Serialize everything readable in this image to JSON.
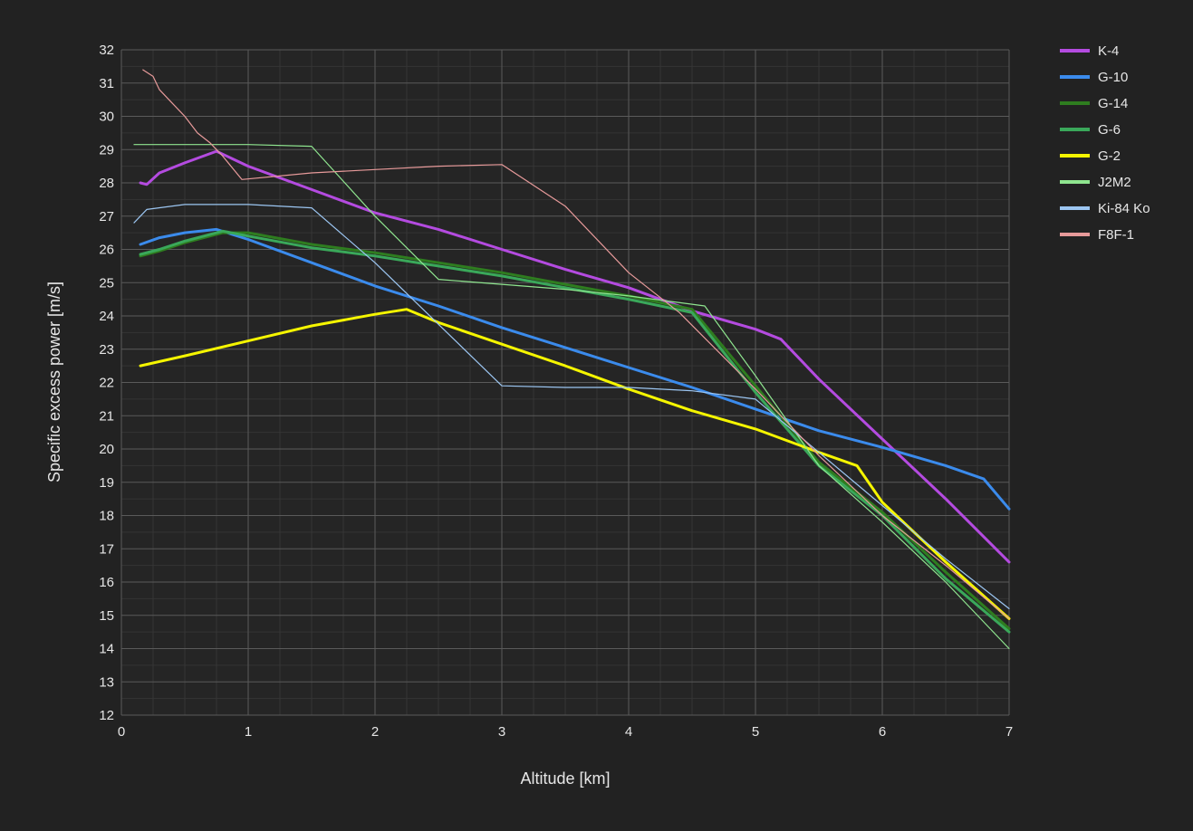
{
  "chart_data": {
    "type": "line",
    "title": "",
    "xlabel": "Altitude [km]",
    "ylabel": "Specific excess power [m/s]",
    "xlim": [
      0,
      7
    ],
    "ylim": [
      12,
      32
    ],
    "xticks": [
      0,
      1,
      2,
      3,
      4,
      5,
      6,
      7
    ],
    "yticks": [
      12,
      13,
      14,
      15,
      16,
      17,
      18,
      19,
      20,
      21,
      22,
      23,
      24,
      25,
      26,
      27,
      28,
      29,
      30,
      31,
      32
    ],
    "grid": true,
    "legend_position": "right",
    "colors": {
      "background": "#222222",
      "plot_background": "#252525",
      "grid_major": "#5a5a5a",
      "grid_minor": "#353535",
      "text": "#e6e6e6"
    },
    "series": [
      {
        "name": "K-4",
        "color": "#b44be0",
        "width": 3,
        "x": [
          0.15,
          0.2,
          0.3,
          0.5,
          0.75,
          1.0,
          1.5,
          2.0,
          2.5,
          3.0,
          3.5,
          4.0,
          4.5,
          5.0,
          5.2,
          5.5,
          6.0,
          6.5,
          7.0
        ],
        "y": [
          28.0,
          27.95,
          28.3,
          28.6,
          28.95,
          28.5,
          27.8,
          27.1,
          26.6,
          26.0,
          25.4,
          24.85,
          24.15,
          23.6,
          23.3,
          22.1,
          20.3,
          18.5,
          16.6
        ]
      },
      {
        "name": "G-10",
        "color": "#3b8bec",
        "width": 3,
        "x": [
          0.15,
          0.3,
          0.5,
          0.75,
          1.0,
          1.5,
          2.0,
          2.5,
          3.0,
          3.5,
          4.0,
          4.5,
          5.0,
          5.5,
          6.0,
          6.5,
          6.8,
          7.0
        ],
        "y": [
          26.15,
          26.35,
          26.5,
          26.6,
          26.3,
          25.6,
          24.9,
          24.3,
          23.65,
          23.05,
          22.45,
          21.85,
          21.2,
          20.55,
          20.05,
          19.5,
          19.1,
          18.2
        ]
      },
      {
        "name": "G-14",
        "color": "#2e7d1f",
        "width": 3,
        "x": [
          0.15,
          0.3,
          0.5,
          0.8,
          1.0,
          1.5,
          2.0,
          2.5,
          3.0,
          3.5,
          4.0,
          4.5,
          5.0,
          5.5,
          6.0,
          6.5,
          7.0
        ],
        "y": [
          25.8,
          25.95,
          26.2,
          26.5,
          26.5,
          26.15,
          25.9,
          25.6,
          25.3,
          24.95,
          24.6,
          24.2,
          21.9,
          19.6,
          18.1,
          16.3,
          14.6
        ]
      },
      {
        "name": "G-6",
        "color": "#3aa85a",
        "width": 3,
        "x": [
          0.15,
          0.3,
          0.5,
          0.8,
          1.0,
          1.5,
          2.0,
          2.5,
          3.0,
          3.5,
          4.0,
          4.5,
          5.0,
          5.5,
          6.0,
          6.5,
          7.0
        ],
        "y": [
          25.85,
          26.0,
          26.25,
          26.55,
          26.4,
          26.05,
          25.8,
          25.5,
          25.2,
          24.85,
          24.5,
          24.1,
          21.7,
          19.5,
          18.0,
          16.1,
          14.5
        ]
      },
      {
        "name": "G-2",
        "color": "#f5f500",
        "width": 3,
        "x": [
          0.15,
          0.5,
          1.0,
          1.5,
          2.0,
          2.25,
          2.5,
          3.0,
          3.5,
          4.0,
          4.5,
          5.0,
          5.5,
          5.8,
          6.0,
          6.5,
          7.0
        ],
        "y": [
          22.5,
          22.8,
          23.25,
          23.7,
          24.05,
          24.2,
          23.8,
          23.15,
          22.5,
          21.8,
          21.15,
          20.6,
          19.9,
          19.5,
          18.4,
          16.6,
          14.9
        ]
      },
      {
        "name": "J2M2",
        "color": "#8fe58f",
        "width": 1.2,
        "x": [
          0.1,
          0.5,
          1.0,
          1.5,
          2.0,
          2.5,
          3.0,
          3.5,
          4.0,
          4.6,
          5.0,
          5.5,
          6.0,
          6.5,
          7.0
        ],
        "y": [
          29.15,
          29.15,
          29.15,
          29.1,
          27.0,
          25.1,
          24.95,
          24.8,
          24.6,
          24.3,
          22.2,
          19.5,
          17.8,
          16.0,
          14.0
        ]
      },
      {
        "name": "Ki-84 Ko",
        "color": "#9cc6f2",
        "width": 1.2,
        "x": [
          0.1,
          0.2,
          0.5,
          1.0,
          1.5,
          2.0,
          2.5,
          3.0,
          3.5,
          4.0,
          4.5,
          5.0,
          5.5,
          6.0,
          6.5,
          7.0
        ],
        "y": [
          26.8,
          27.2,
          27.35,
          27.35,
          27.25,
          25.6,
          23.75,
          21.9,
          21.85,
          21.85,
          21.75,
          21.5,
          19.9,
          18.3,
          16.7,
          15.2
        ]
      },
      {
        "name": "F8F-1",
        "color": "#e79a9a",
        "width": 1.2,
        "x": [
          0.17,
          0.25,
          0.3,
          0.4,
          0.5,
          0.6,
          0.7,
          0.8,
          0.95,
          1.5,
          2.0,
          2.5,
          3.0,
          3.5,
          4.0,
          4.4,
          5.0,
          5.5,
          6.0,
          6.5,
          7.0
        ],
        "y": [
          31.4,
          31.2,
          30.8,
          30.4,
          30.0,
          29.5,
          29.2,
          28.8,
          28.1,
          28.3,
          28.4,
          28.5,
          28.55,
          27.3,
          25.3,
          24.1,
          21.8,
          19.8,
          18.0,
          16.5,
          14.9
        ]
      }
    ]
  }
}
